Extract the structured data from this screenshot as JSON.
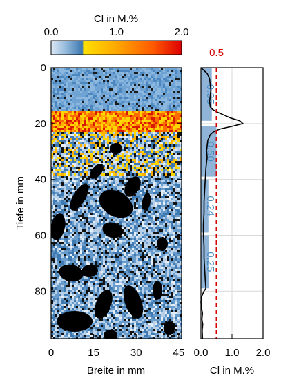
{
  "chart_data": [
    {
      "type": "heatmap",
      "colorbar": {
        "title": "Cl in M.%",
        "tick_labels": [
          "0.0",
          "1.0",
          "2.0"
        ],
        "range": [
          0.0,
          2.0
        ],
        "colors": [
          "#dde9f5",
          "#8fb6d9",
          "#3c78b0",
          "#ffe000",
          "#ffa800",
          "#ff5a00",
          "#dd0000"
        ]
      },
      "xlabel": "Breite in mm",
      "ylabel": "Tiefe in mm",
      "xlim": [
        0,
        46
      ],
      "ylim": [
        0,
        97
      ],
      "x_ticks": [
        0,
        15,
        30,
        45
      ],
      "x_tick_labels": [
        "0",
        "15",
        "30",
        "45"
      ],
      "y_ticks": [
        0,
        20,
        40,
        60,
        80
      ],
      "y_tick_labels": [
        "0",
        "20",
        "40",
        "60",
        "80"
      ],
      "hot_band_depth": [
        15,
        23
      ],
      "colors": {
        "aggregate": "#000000",
        "matrix": "#6a9ccb",
        "matrix_light": "#b8d0e8",
        "hot": "#ff6a00",
        "hot_core": "#d81a00",
        "warm": "#ffd600"
      }
    },
    {
      "type": "bar",
      "orientation": "horizontal",
      "xlabel": "Cl in M.%",
      "xlim": [
        0,
        2.0
      ],
      "ylim": [
        0,
        97
      ],
      "x_ticks": [
        0,
        1.0,
        2.0
      ],
      "x_tick_labels": [
        "0.0",
        "1.0",
        "2.0"
      ],
      "grid": true,
      "bars": [
        {
          "depth_from": 0,
          "depth_to": 19,
          "value": 0.35,
          "label": "0.35"
        },
        {
          "depth_from": 21,
          "depth_to": 39,
          "value": 0.5,
          "label": "0.50"
        },
        {
          "depth_from": 40,
          "depth_to": 59,
          "value": 0.24,
          "label": "0.24"
        },
        {
          "depth_from": 60,
          "depth_to": 79,
          "value": 0.25,
          "label": "0.25"
        }
      ],
      "bar_color": "#8fb4d8",
      "bar_label_color": "#4a8cbf",
      "profile": {
        "depth": [
          0,
          2,
          4,
          6,
          8,
          10,
          12,
          14,
          15,
          16,
          17,
          18,
          19,
          20,
          21,
          22,
          23,
          24,
          26,
          28,
          30,
          32,
          34,
          36,
          38,
          40,
          44,
          48,
          52,
          56,
          60,
          64,
          68,
          72,
          76,
          79,
          80,
          82,
          84,
          86,
          88,
          90,
          92,
          94,
          97
        ],
        "value": [
          0.0,
          0.2,
          0.28,
          0.3,
          0.32,
          0.3,
          0.28,
          0.3,
          0.38,
          0.55,
          0.75,
          0.95,
          1.25,
          1.35,
          1.0,
          0.6,
          0.4,
          0.3,
          0.22,
          0.2,
          0.18,
          0.2,
          0.18,
          0.16,
          0.15,
          0.14,
          0.12,
          0.1,
          0.1,
          0.08,
          0.08,
          0.1,
          0.1,
          0.12,
          0.14,
          0.16,
          0.1,
          0.02,
          0.0,
          0.02,
          0.05,
          0.03,
          0.06,
          0.04,
          0.05
        ],
        "color": "#000000"
      },
      "threshold": {
        "value": 0.5,
        "label": "0.5",
        "color": "#d40000"
      }
    }
  ]
}
